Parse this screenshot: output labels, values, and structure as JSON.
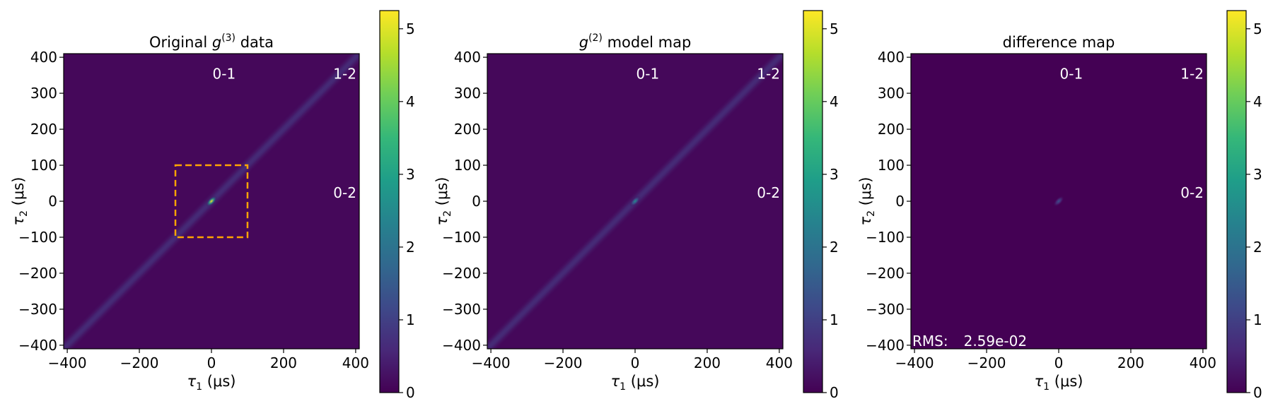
{
  "colors": {
    "background": "#440154",
    "dashed_box": "#ffa500",
    "annotation": "#ffffff",
    "colormap": "viridis"
  },
  "chart_data": [
    {
      "type": "heatmap",
      "title_main": "Original ",
      "title_symbol": "g",
      "title_sup": "(3)",
      "title_rest": " data",
      "xlabel_symbol": "τ",
      "xlabel_sub": "1",
      "xlabel_unit": " (μs)",
      "ylabel_symbol": "τ",
      "ylabel_sub": "2",
      "ylabel_unit": " (μs)",
      "xlim": [
        -410,
        410
      ],
      "ylim": [
        -410,
        410
      ],
      "xticks": [
        -400,
        -200,
        0,
        200,
        400
      ],
      "xtick_labels": [
        "−400",
        "−200",
        "0",
        "200",
        "400"
      ],
      "yticks": [
        400,
        300,
        200,
        100,
        0,
        -100,
        -200,
        -300,
        -400
      ],
      "ytick_labels": [
        "400",
        "300",
        "200",
        "100",
        "0",
        "−100",
        "−200",
        "−300",
        "−400"
      ],
      "colorbar_ticks": [
        0,
        1,
        2,
        3,
        4,
        5
      ],
      "colorbar_range": [
        0,
        5.25
      ],
      "background_level": 0.1,
      "lines": [
        {
          "orientation": "vertical",
          "at": 0,
          "level": 0.9
        },
        {
          "orientation": "horizontal",
          "at": 0,
          "level": 0.9
        },
        {
          "orientation": "diagonal",
          "at": 0,
          "level": 0.9
        }
      ],
      "peak": {
        "x": 0,
        "y": 0,
        "value": 5.2
      },
      "annotations": [
        {
          "text": "0-1",
          "x": 35,
          "y": 340
        },
        {
          "text": "1-2",
          "x": 370,
          "y": 340
        },
        {
          "text": "0-2",
          "x": 370,
          "y": 10
        }
      ],
      "dashed_box": {
        "x": [
          -100,
          100
        ],
        "y": [
          -100,
          100
        ]
      }
    },
    {
      "type": "heatmap",
      "title_main": "",
      "title_symbol": "g",
      "title_sup": "(2)",
      "title_rest": " model map",
      "xlabel_symbol": "τ",
      "xlabel_sub": "1",
      "xlabel_unit": " (μs)",
      "ylabel_symbol": "τ",
      "ylabel_sub": "2",
      "ylabel_unit": " (μs)",
      "xlim": [
        -410,
        410
      ],
      "ylim": [
        -410,
        410
      ],
      "xticks": [
        -400,
        -200,
        0,
        200,
        400
      ],
      "xtick_labels": [
        "−400",
        "−200",
        "0",
        "200",
        "400"
      ],
      "yticks": [
        400,
        300,
        200,
        100,
        0,
        -100,
        -200,
        -300,
        -400
      ],
      "ytick_labels": [
        "400",
        "300",
        "200",
        "100",
        "0",
        "−100",
        "−200",
        "−300",
        "−400"
      ],
      "colorbar_ticks": [
        0,
        1,
        2,
        3,
        4,
        5
      ],
      "colorbar_range": [
        0,
        5.25
      ],
      "background_level": 0.1,
      "lines": [
        {
          "orientation": "vertical",
          "at": 0,
          "level": 0.9
        },
        {
          "orientation": "horizontal",
          "at": 0,
          "level": 0.9
        },
        {
          "orientation": "diagonal",
          "at": 0,
          "level": 0.9
        }
      ],
      "peak": {
        "x": 0,
        "y": 0,
        "value": 2.6
      },
      "annotations": [
        {
          "text": "0-1",
          "x": 35,
          "y": 340
        },
        {
          "text": "1-2",
          "x": 370,
          "y": 340
        },
        {
          "text": "0-2",
          "x": 370,
          "y": 10
        }
      ]
    },
    {
      "type": "heatmap",
      "title_main": "difference map",
      "title_symbol": "",
      "title_sup": "",
      "title_rest": "",
      "xlabel_symbol": "τ",
      "xlabel_sub": "1",
      "xlabel_unit": " (μs)",
      "ylabel_symbol": "τ",
      "ylabel_sub": "2",
      "ylabel_unit": " (μs)",
      "xlim": [
        -410,
        410
      ],
      "ylim": [
        -410,
        410
      ],
      "xticks": [
        -400,
        -200,
        0,
        200,
        400
      ],
      "xtick_labels": [
        "−400",
        "−200",
        "0",
        "200",
        "400"
      ],
      "yticks": [
        400,
        300,
        200,
        100,
        0,
        -100,
        -200,
        -300,
        -400
      ],
      "ytick_labels": [
        "400",
        "300",
        "200",
        "100",
        "0",
        "−100",
        "−200",
        "−300",
        "−400"
      ],
      "colorbar_ticks": [
        0,
        1,
        2,
        3,
        4,
        5
      ],
      "colorbar_range": [
        0,
        5.25
      ],
      "background_level": 0.0,
      "lines": [],
      "peak": {
        "x": 0,
        "y": 0,
        "value": 1.3
      },
      "annotations": [
        {
          "text": "0-1",
          "x": 35,
          "y": 340
        },
        {
          "text": "1-2",
          "x": 370,
          "y": 340
        },
        {
          "text": "0-2",
          "x": 370,
          "y": 10
        }
      ],
      "rms_label": "RMS:",
      "rms_value": "2.59e-02"
    }
  ]
}
